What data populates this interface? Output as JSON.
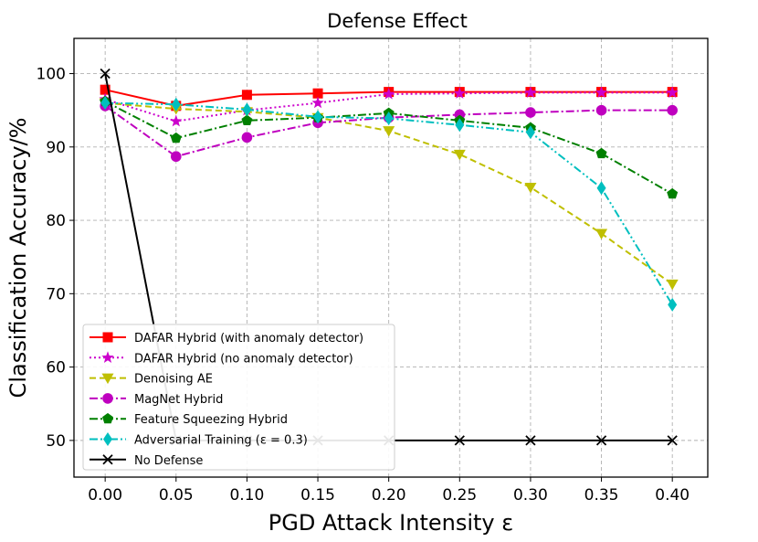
{
  "chart_data": {
    "type": "line",
    "title": "Defense Effect",
    "xlabel": "PGD Attack Intensity ε",
    "ylabel": "Classification Accuracy/%",
    "x": [
      0.0,
      0.05,
      0.1,
      0.15,
      0.2,
      0.25,
      0.3,
      0.35,
      0.4
    ],
    "x_tick_labels": [
      "0.00",
      "0.05",
      "0.10",
      "0.15",
      "0.20",
      "0.25",
      "0.30",
      "0.35",
      "0.40"
    ],
    "y_ticks": [
      50,
      60,
      70,
      80,
      90,
      100
    ],
    "y_tick_labels": [
      "50",
      "60",
      "70",
      "80",
      "90",
      "100"
    ],
    "xlim": [
      -0.022,
      0.425
    ],
    "ylim": [
      45.0,
      104.8
    ],
    "grid": true,
    "legend_position": "lower-left",
    "series": [
      {
        "name": "DAFAR Hybrid (with anomaly detector)",
        "color": "#ff0000",
        "marker": "square",
        "dash": "solid",
        "values": [
          97.8,
          95.6,
          97.1,
          97.3,
          97.5,
          97.5,
          97.5,
          97.5,
          97.5
        ]
      },
      {
        "name": "DAFAR Hybrid (no anomaly detector)",
        "color": "#cc00cc",
        "marker": "star",
        "dash": "dotted",
        "values": [
          96.5,
          93.5,
          95.0,
          96.0,
          97.2,
          97.3,
          97.4,
          97.4,
          97.4
        ]
      },
      {
        "name": "Denoising AE",
        "color": "#bfbf00",
        "marker": "triangle-down",
        "dash": "dashed",
        "values": [
          96.0,
          95.2,
          94.8,
          94.0,
          92.2,
          89.0,
          84.5,
          78.2,
          71.3
        ]
      },
      {
        "name": "MagNet Hybrid",
        "color": "#bf00bf",
        "marker": "circle",
        "dash": "dashdot",
        "values": [
          95.6,
          88.7,
          91.3,
          93.3,
          94.0,
          94.4,
          94.7,
          95.0,
          95.0
        ]
      },
      {
        "name": "Feature Squeezing Hybrid",
        "color": "#008000",
        "marker": "pentagon",
        "dash": "dashdot",
        "values": [
          96.2,
          91.2,
          93.6,
          94.0,
          94.6,
          93.6,
          92.6,
          89.1,
          83.6
        ]
      },
      {
        "name": "Adversarial Training (ε = 0.3)",
        "color": "#00bfbf",
        "marker": "diamond",
        "dash": "dashdotdot",
        "values": [
          96.0,
          95.8,
          95.1,
          94.1,
          93.9,
          93.0,
          92.0,
          84.4,
          68.5
        ]
      },
      {
        "name": "No Defense",
        "color": "#000000",
        "marker": "x",
        "dash": "solid",
        "values": [
          100.0,
          50.0,
          50.0,
          50.0,
          50.0,
          50.0,
          50.0,
          50.0,
          50.0
        ]
      }
    ]
  }
}
